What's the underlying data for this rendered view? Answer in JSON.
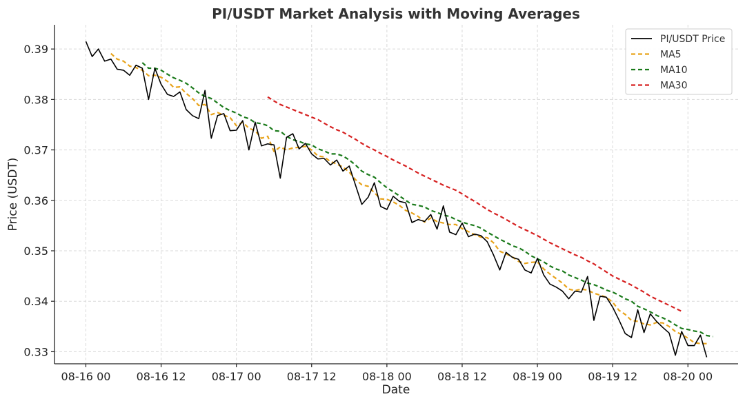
{
  "chart_data": {
    "type": "line",
    "title": "PI/USDT Market Analysis with Moving Averages",
    "xlabel": "Date",
    "ylabel": "Price (USDT)",
    "x_tick_labels": [
      "08-16 00",
      "08-16 12",
      "08-17 00",
      "08-17 12",
      "08-18 00",
      "08-18 12",
      "08-19 00",
      "08-19 12",
      "08-20 00"
    ],
    "y_tick_labels": [
      "0.33",
      "0.34",
      "0.35",
      "0.36",
      "0.37",
      "0.38",
      "0.39"
    ],
    "y_ticks": [
      0.33,
      0.34,
      0.35,
      0.36,
      0.37,
      0.38,
      0.39
    ],
    "ylim": [
      0.3276,
      0.3948
    ],
    "xlim_hours": [
      -5,
      104
    ],
    "x_ticks_hours": [
      0,
      12,
      24,
      36,
      48,
      60,
      72,
      84,
      96
    ],
    "x_start": "08-16 00",
    "x_step_hours": 1,
    "grid": true,
    "legend_position": "top-right",
    "series": [
      {
        "name": "PI/USDT Price",
        "color": "#000000",
        "style": "solid",
        "start_hour": 0,
        "values": [
          0.3915,
          0.3885,
          0.39,
          0.3876,
          0.388,
          0.386,
          0.3858,
          0.3848,
          0.3868,
          0.3862,
          0.38,
          0.3862,
          0.383,
          0.381,
          0.3806,
          0.3815,
          0.378,
          0.3768,
          0.3762,
          0.3818,
          0.3723,
          0.3768,
          0.3772,
          0.3738,
          0.3739,
          0.3758,
          0.37,
          0.3755,
          0.3708,
          0.3712,
          0.371,
          0.3644,
          0.3725,
          0.3732,
          0.3702,
          0.3713,
          0.3692,
          0.3682,
          0.3683,
          0.367,
          0.368,
          0.3658,
          0.3668,
          0.363,
          0.3592,
          0.3606,
          0.3635,
          0.3588,
          0.3582,
          0.3608,
          0.3598,
          0.3595,
          0.3556,
          0.3562,
          0.3558,
          0.3572,
          0.3543,
          0.3589,
          0.3537,
          0.3532,
          0.3555,
          0.3528,
          0.3533,
          0.353,
          0.3518,
          0.3492,
          0.3462,
          0.3497,
          0.3487,
          0.3483,
          0.3462,
          0.3456,
          0.3485,
          0.3452,
          0.3434,
          0.3428,
          0.342,
          0.3405,
          0.342,
          0.3418,
          0.3449,
          0.3362,
          0.341,
          0.3408,
          0.3388,
          0.3363,
          0.3336,
          0.3328,
          0.3383,
          0.3338,
          0.3375,
          0.336,
          0.3348,
          0.3337,
          0.3293,
          0.334,
          0.3312,
          0.3312,
          0.3333,
          0.3289
        ]
      },
      {
        "name": "MA5",
        "color": "#e8a31a",
        "style": "dashed",
        "start_hour": 4,
        "values": [
          0.3891,
          0.388,
          0.3876,
          0.3866,
          0.3863,
          0.3858,
          0.3847,
          0.3848,
          0.3844,
          0.3836,
          0.3824,
          0.3825,
          0.3812,
          0.3802,
          0.3788,
          0.379,
          0.377,
          0.3774,
          0.3769,
          0.3764,
          0.3748,
          0.3755,
          0.3743,
          0.3738,
          0.3723,
          0.3727,
          0.3697,
          0.3706,
          0.37,
          0.3704,
          0.3705,
          0.3707,
          0.37,
          0.3688,
          0.3686,
          0.3677,
          0.3672,
          0.3666,
          0.3656,
          0.3641,
          0.3631,
          0.3628,
          0.3615,
          0.3603,
          0.3602,
          0.3597,
          0.359,
          0.358,
          0.3575,
          0.3568,
          0.3557,
          0.3565,
          0.3558,
          0.3555,
          0.3552,
          0.3552,
          0.3544,
          0.3538,
          0.3532,
          0.3527,
          0.3526,
          0.3516,
          0.3499,
          0.3494,
          0.3488,
          0.3479,
          0.3475,
          0.3477,
          0.3478,
          0.3464,
          0.3454,
          0.3445,
          0.3436,
          0.3424,
          0.3421,
          0.3424,
          0.3422,
          0.3416,
          0.3412,
          0.3408,
          0.3398,
          0.3382,
          0.3374,
          0.3362,
          0.336,
          0.3355,
          0.3353,
          0.3358,
          0.3357,
          0.335,
          0.334,
          0.3334,
          0.3327,
          0.3318,
          0.3316,
          0.3316
        ]
      },
      {
        "name": "MA10",
        "color": "#1a7a1a",
        "style": "dashed",
        "start_hour": 9,
        "values": [
          0.3873,
          0.3862,
          0.3862,
          0.3858,
          0.385,
          0.3843,
          0.3838,
          0.3832,
          0.3823,
          0.3813,
          0.3806,
          0.3802,
          0.3793,
          0.3784,
          0.3778,
          0.3773,
          0.3766,
          0.3762,
          0.3754,
          0.3752,
          0.3748,
          0.3738,
          0.3737,
          0.3727,
          0.372,
          0.3717,
          0.3712,
          0.371,
          0.3702,
          0.3698,
          0.3692,
          0.3692,
          0.3688,
          0.368,
          0.367,
          0.3658,
          0.3651,
          0.3646,
          0.3635,
          0.3625,
          0.3617,
          0.3609,
          0.36,
          0.3592,
          0.359,
          0.3587,
          0.358,
          0.3576,
          0.3571,
          0.3568,
          0.3562,
          0.3557,
          0.3553,
          0.355,
          0.3545,
          0.3537,
          0.353,
          0.3523,
          0.3517,
          0.351,
          0.3506,
          0.3499,
          0.349,
          0.3484,
          0.3478,
          0.347,
          0.3464,
          0.346,
          0.3452,
          0.3447,
          0.3442,
          0.3436,
          0.3433,
          0.3428,
          0.3422,
          0.3418,
          0.3412,
          0.3405,
          0.34,
          0.339,
          0.3385,
          0.3379,
          0.3372,
          0.3367,
          0.3361,
          0.3353,
          0.3346,
          0.3344,
          0.3341,
          0.3339,
          0.3332,
          0.333
        ]
      },
      {
        "name": "MA30",
        "color": "#d62020",
        "style": "dashed",
        "start_hour": 29,
        "values": [
          0.3805,
          0.3797,
          0.379,
          0.3785,
          0.378,
          0.3775,
          0.377,
          0.3765,
          0.376,
          0.3753,
          0.3746,
          0.374,
          0.3735,
          0.3728,
          0.3721,
          0.3713,
          0.3706,
          0.37,
          0.3693,
          0.3687,
          0.368,
          0.3674,
          0.3668,
          0.3661,
          0.3654,
          0.3648,
          0.3642,
          0.3636,
          0.363,
          0.3625,
          0.362,
          0.3613,
          0.3605,
          0.3598,
          0.359,
          0.3582,
          0.3575,
          0.3569,
          0.3562,
          0.3555,
          0.3548,
          0.3542,
          0.3536,
          0.353,
          0.3523,
          0.3516,
          0.351,
          0.3504,
          0.3498,
          0.3492,
          0.3487,
          0.348,
          0.3474,
          0.3466,
          0.3458,
          0.345,
          0.3444,
          0.3438,
          0.3432,
          0.3425,
          0.3418,
          0.341,
          0.3404,
          0.3398,
          0.3392,
          0.3386,
          0.338
        ]
      }
    ]
  }
}
